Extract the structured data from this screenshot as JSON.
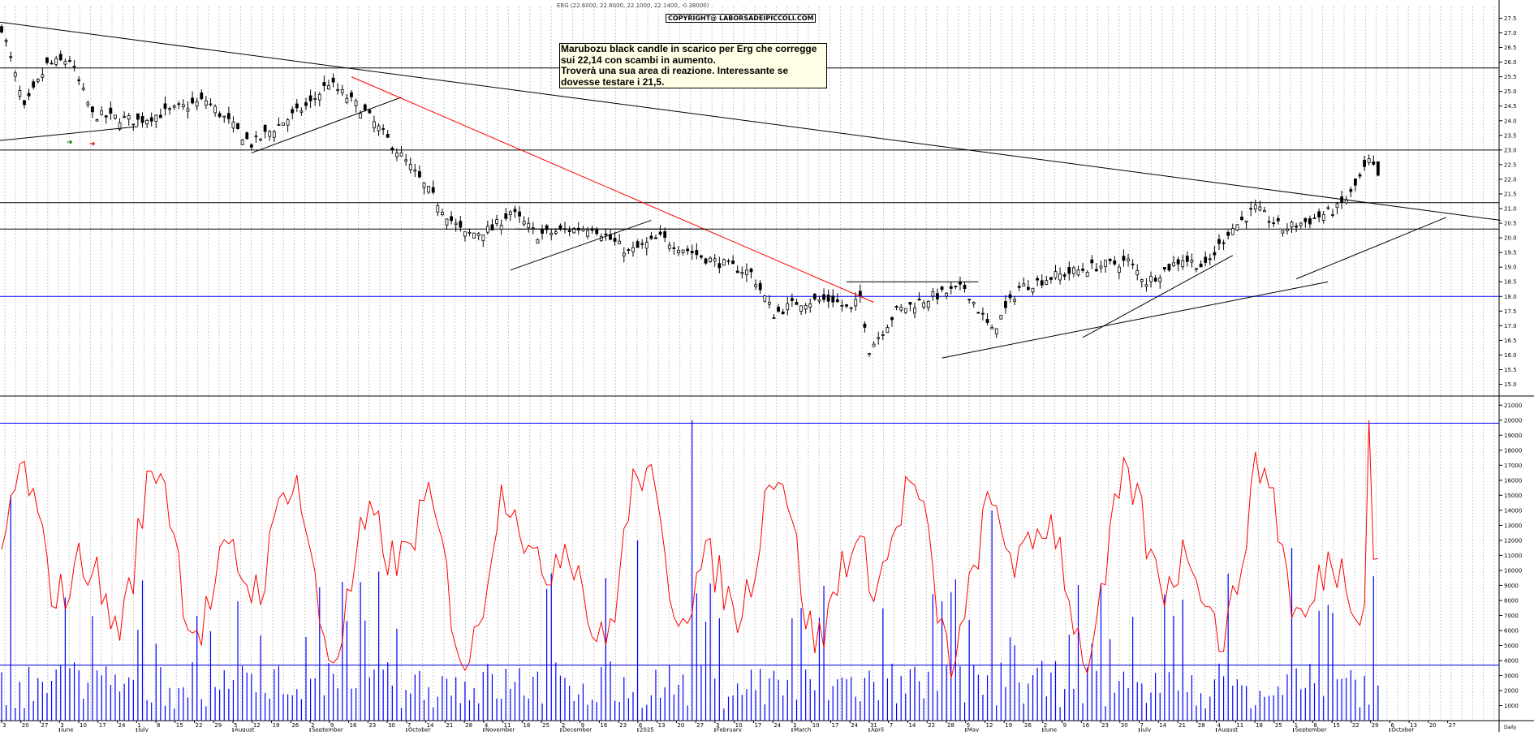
{
  "header": {
    "quote": "ERG (22.6000, 22.6000, 22.1000, 22.1400, -0.38000)",
    "copyright": "COPYRIGHT@ LABORSADEIPICCOLI.COM"
  },
  "annotation": {
    "lines": [
      "Marubozu black candle in scarico per Erg che corregge",
      "sui 22,14 con scambi in aumento.",
      "Troverà una sua area di reazione. Interessante se",
      "dovesse testare i 21,5."
    ]
  },
  "colors": {
    "candle": "#000000",
    "grid": "#c8c8c8",
    "resistance": "#000000",
    "downtrend": "#ff0000",
    "support_blue": "#0000ff",
    "volume": "#0000ff",
    "volume_ma": "#ff0000"
  },
  "chart_data": [
    {
      "type": "candlestick",
      "ylim": [
        14.6,
        27.9
      ],
      "ytick_values": [
        15.0,
        15.5,
        16.0,
        16.5,
        17.0,
        17.5,
        18.0,
        18.5,
        19.0,
        19.5,
        20.0,
        20.5,
        21.0,
        21.5,
        22.0,
        22.5,
        23.0,
        23.5,
        24.0,
        24.5,
        25.0,
        25.5,
        26.0,
        26.5,
        27.0,
        27.5
      ],
      "ytick_labels": [
        "15.0",
        "15.5",
        "16.0",
        "16.5",
        "17.0",
        "17.5",
        "18.0",
        "18.5",
        "19.0",
        "19.5",
        "20.0",
        "20.5",
        "21.0",
        "21.5",
        "22.0",
        "22.5",
        "23.0",
        "23.5",
        "24.0",
        "24.5",
        "25.0",
        "25.5",
        "26.0",
        "26.5",
        "27.0",
        "27.5"
      ],
      "horizontal_levels": [
        25.8,
        23.0,
        21.2,
        20.3,
        18.0
      ],
      "last_close": 22.14,
      "close_path": [
        {
          "t": 0,
          "v": 27.2
        },
        {
          "t": 5,
          "v": 24.4
        },
        {
          "t": 10,
          "v": 25.9
        },
        {
          "t": 15,
          "v": 26.1
        },
        {
          "t": 20,
          "v": 24.2
        },
        {
          "t": 30,
          "v": 24.0
        },
        {
          "t": 45,
          "v": 24.7
        },
        {
          "t": 55,
          "v": 23.2
        },
        {
          "t": 68,
          "v": 24.6
        },
        {
          "t": 72,
          "v": 25.3
        },
        {
          "t": 80,
          "v": 24.3
        },
        {
          "t": 88,
          "v": 22.8
        },
        {
          "t": 95,
          "v": 21.4
        },
        {
          "t": 99,
          "v": 20.6
        },
        {
          "t": 102,
          "v": 20.1
        },
        {
          "t": 108,
          "v": 20.3
        },
        {
          "t": 112,
          "v": 20.9
        },
        {
          "t": 118,
          "v": 20.1
        },
        {
          "t": 130,
          "v": 20.4
        },
        {
          "t": 138,
          "v": 19.5
        },
        {
          "t": 145,
          "v": 20.0
        },
        {
          "t": 155,
          "v": 19.3
        },
        {
          "t": 165,
          "v": 18.8
        },
        {
          "t": 170,
          "v": 17.4
        },
        {
          "t": 175,
          "v": 17.8
        },
        {
          "t": 183,
          "v": 17.9
        },
        {
          "t": 187,
          "v": 17.5
        },
        {
          "t": 189,
          "v": 18.0
        },
        {
          "t": 191,
          "v": 16.2
        },
        {
          "t": 197,
          "v": 17.5
        },
        {
          "t": 205,
          "v": 18.0
        },
        {
          "t": 212,
          "v": 18.3
        },
        {
          "t": 218,
          "v": 16.8
        },
        {
          "t": 224,
          "v": 18.3
        },
        {
          "t": 232,
          "v": 18.7
        },
        {
          "t": 240,
          "v": 19.0
        },
        {
          "t": 248,
          "v": 19.2
        },
        {
          "t": 252,
          "v": 18.5
        },
        {
          "t": 260,
          "v": 19.3
        },
        {
          "t": 265,
          "v": 19.0
        },
        {
          "t": 270,
          "v": 20.2
        },
        {
          "t": 276,
          "v": 21.0
        },
        {
          "t": 282,
          "v": 20.3
        },
        {
          "t": 288,
          "v": 20.6
        },
        {
          "t": 294,
          "v": 21.0
        },
        {
          "t": 297,
          "v": 21.5
        },
        {
          "t": 301,
          "v": 22.6
        },
        {
          "t": 303,
          "v": 22.14
        }
      ]
    },
    {
      "type": "bar",
      "name": "volume",
      "ylim": [
        0,
        21500
      ],
      "ytick_values": [
        1000,
        2000,
        3000,
        4000,
        5000,
        6000,
        7000,
        8000,
        9000,
        10000,
        11000,
        12000,
        13000,
        14000,
        15000,
        16000,
        17000,
        18000,
        19000,
        20000,
        21000
      ],
      "ytick_labels": [
        "1000",
        "2000",
        "3000",
        "4000",
        "5000",
        "6000",
        "7000",
        "8000",
        "9000",
        "10000",
        "11000",
        "12000",
        "13000",
        "14000",
        "15000",
        "16000",
        "17000",
        "18000",
        "19000",
        "20000",
        "21000"
      ],
      "horizontal_levels": [
        19800,
        3700
      ],
      "notable_peaks": [
        {
          "t": 152,
          "v": 20000
        },
        {
          "t": 2,
          "v": 15000
        },
        {
          "t": 218,
          "v": 14000
        },
        {
          "t": 140,
          "v": 12000
        },
        {
          "t": 284,
          "v": 11500
        }
      ]
    }
  ],
  "x_axis": {
    "day_labels": [
      "3",
      "20",
      "27",
      "3",
      "10",
      "17",
      "24",
      "1",
      "8",
      "15",
      "22",
      "29",
      "5",
      "12",
      "19",
      "26",
      "2",
      "9",
      "16",
      "23",
      "30",
      "7",
      "14",
      "21",
      "28",
      "4",
      "11",
      "18",
      "25",
      "2",
      "9",
      "16",
      "23",
      "6",
      "13",
      "20",
      "27",
      "3",
      "10",
      "17",
      "24",
      "3",
      "10",
      "17",
      "24",
      "31",
      "7",
      "14",
      "22",
      "28",
      "5",
      "12",
      "19",
      "26",
      "2",
      "9",
      "16",
      "23",
      "30",
      "7",
      "14",
      "21",
      "28",
      "4",
      "11",
      "18",
      "25",
      "1",
      "8",
      "15",
      "22",
      "29",
      "6",
      "13",
      "20",
      "27"
    ],
    "month_labels": [
      {
        "label": "June",
        "day_index": 3
      },
      {
        "label": "July",
        "day_index": 7
      },
      {
        "label": "August",
        "day_index": 12
      },
      {
        "label": "September",
        "day_index": 16
      },
      {
        "label": "October",
        "day_index": 21
      },
      {
        "label": "November",
        "day_index": 25
      },
      {
        "label": "December",
        "day_index": 29
      },
      {
        "label": "2025",
        "day_index": 33
      },
      {
        "label": "February",
        "day_index": 37
      },
      {
        "label": "March",
        "day_index": 41
      },
      {
        "label": "April",
        "day_index": 45
      },
      {
        "label": "May",
        "day_index": 50
      },
      {
        "label": "June",
        "day_index": 54
      },
      {
        "label": "July",
        "day_index": 59
      },
      {
        "label": "August",
        "day_index": 63
      },
      {
        "label": "September",
        "day_index": 67
      },
      {
        "label": "October",
        "day_index": 72
      }
    ],
    "end_label": "Daily"
  }
}
